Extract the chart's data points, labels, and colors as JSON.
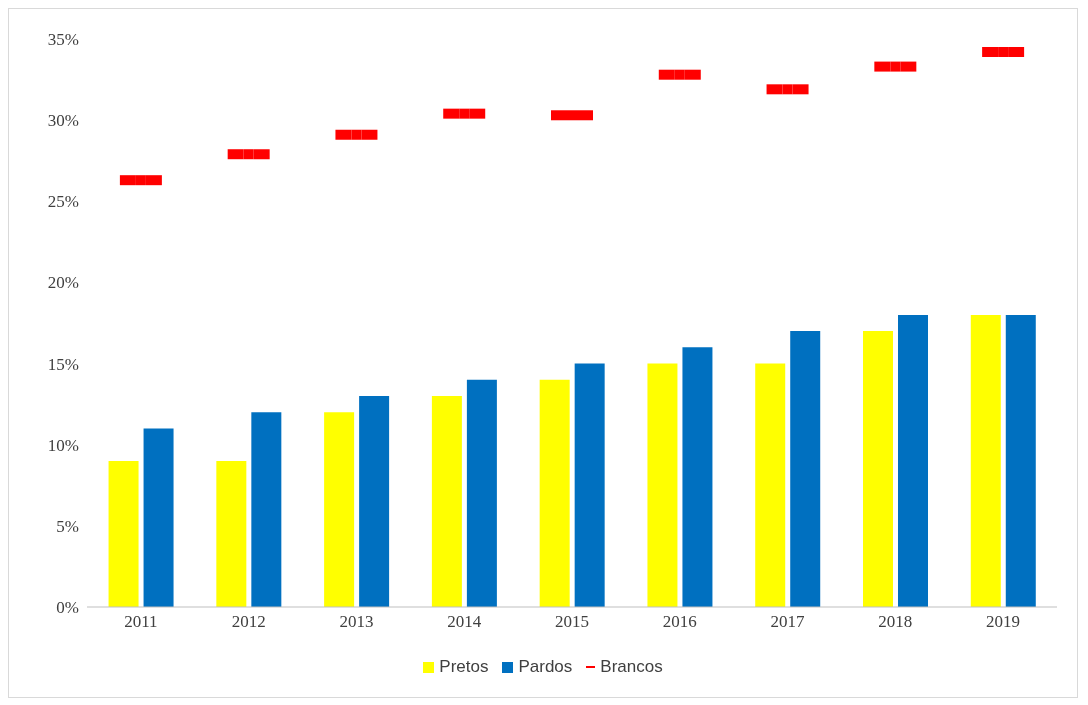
{
  "chart_data": {
    "type": "bar",
    "categories": [
      "2011",
      "2012",
      "2013",
      "2014",
      "2015",
      "2016",
      "2017",
      "2018",
      "2019"
    ],
    "series": [
      {
        "name": "Pretos",
        "color": "#ffff00",
        "values": [
          9,
          9,
          12,
          13,
          14,
          15,
          15,
          17,
          18
        ]
      },
      {
        "name": "Pardos",
        "color": "#0070c0",
        "values": [
          11,
          12,
          13,
          14,
          15,
          16,
          17,
          18,
          18
        ]
      },
      {
        "name": "Brancos",
        "type": "scatter",
        "color": "#ff0000",
        "values": [
          26.3,
          27.9,
          29.1,
          30.4,
          30.3,
          32.8,
          31.9,
          33.3,
          34.2
        ]
      }
    ],
    "ylim": [
      0,
      35
    ],
    "yticks": [
      {
        "value": 0,
        "label": "0%"
      },
      {
        "value": 5,
        "label": "5%"
      },
      {
        "value": 10,
        "label": "10%"
      },
      {
        "value": 15,
        "label": "15%"
      },
      {
        "value": 20,
        "label": "20%"
      },
      {
        "value": 25,
        "label": "25%"
      },
      {
        "value": 30,
        "label": "30%"
      },
      {
        "value": 35,
        "label": "35%"
      }
    ],
    "grid": false,
    "legend": "bottom"
  }
}
